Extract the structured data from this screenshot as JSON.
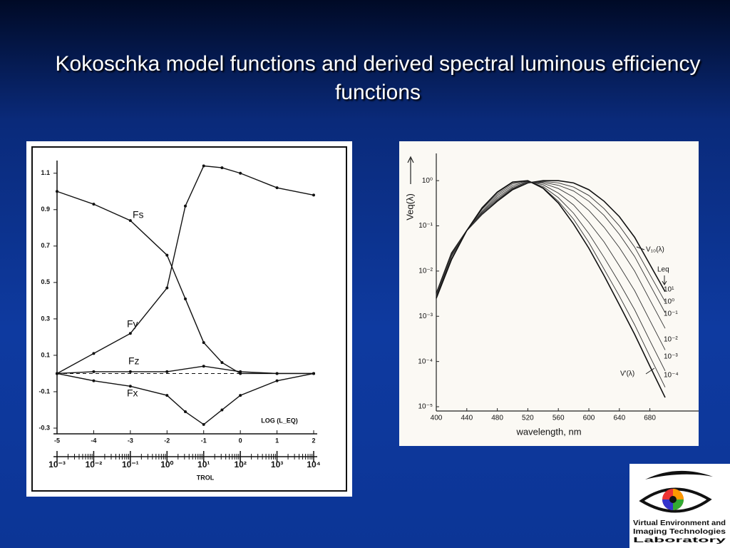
{
  "title": "Kokoschka model functions and derived spectral luminous efficiency functions",
  "chart_data": [
    {
      "type": "line",
      "xlim": [
        -5,
        2
      ],
      "xticks": [
        -5,
        -4,
        -3,
        -2,
        -1,
        0,
        1,
        2
      ],
      "ylim": [
        -0.3,
        1.15
      ],
      "yticks": [
        1.1,
        0.9,
        0.7,
        0.5,
        0.3,
        0.1,
        -0.1,
        -0.3
      ],
      "x2lim": [
        0.001,
        10000
      ],
      "log_x2": true,
      "x2ticks": [
        {
          "value": 0.001,
          "label": "10⁻³"
        },
        {
          "value": 0.01,
          "label": "10⁻²"
        },
        {
          "value": 0.1,
          "label": "10⁻¹"
        },
        {
          "value": 1,
          "label": "10⁰"
        },
        {
          "value": 10,
          "label": "10¹"
        },
        {
          "value": 100,
          "label": "10²"
        },
        {
          "value": 1000,
          "label": "10³"
        },
        {
          "value": 10000,
          "label": "10⁴"
        }
      ],
      "x2label": "TROL",
      "annotations": [
        "LOG (L_EQ)"
      ],
      "series": [
        {
          "name": "Fs",
          "color": "#111111",
          "x": [
            -5,
            -4,
            -3,
            -2,
            -1.5,
            -1,
            -0.5,
            0,
            1,
            2
          ],
          "values": [
            1.0,
            0.93,
            0.84,
            0.65,
            0.41,
            0.17,
            0.06,
            0.0,
            0.0,
            0.0
          ]
        },
        {
          "name": "Fy",
          "color": "#111111",
          "x": [
            -5,
            -4,
            -3,
            -2,
            -1.5,
            -1,
            -0.5,
            0,
            1,
            2
          ],
          "values": [
            0,
            0.11,
            0.22,
            0.47,
            0.92,
            1.14,
            1.13,
            1.1,
            1.02,
            0.98
          ]
        },
        {
          "name": "Fz",
          "color": "#111111",
          "x": [
            -5,
            -4,
            -3,
            -2,
            -1,
            0,
            1,
            2
          ],
          "values": [
            0,
            0.01,
            0.01,
            0.01,
            0.04,
            0.01,
            0.0,
            0
          ]
        },
        {
          "name": "Fx",
          "color": "#111111",
          "x": [
            -5,
            -4,
            -3,
            -2,
            -1.5,
            -1,
            -0.5,
            0,
            1,
            2
          ],
          "values": [
            0,
            -0.04,
            -0.07,
            -0.12,
            -0.21,
            -0.28,
            -0.2,
            -0.12,
            -0.04,
            0
          ]
        }
      ]
    },
    {
      "type": "line",
      "log_y": true,
      "xlabel": "wavelength, nm",
      "ylabel": "Veq(λ)",
      "annotations": [
        "Leq"
      ],
      "xlim": [
        400,
        700
      ],
      "xticks": [
        400,
        440,
        480,
        520,
        560,
        600,
        640,
        680
      ],
      "ylim": [
        1e-05,
        4
      ],
      "yticks": [
        {
          "value": 1,
          "label": "10⁰"
        },
        {
          "value": 0.1,
          "label": "10⁻¹"
        },
        {
          "value": 0.01,
          "label": "10⁻²"
        },
        {
          "value": 0.001,
          "label": "10⁻³"
        },
        {
          "value": 0.0001,
          "label": "10⁻⁴"
        },
        {
          "value": 1e-05,
          "label": "10⁻⁵"
        }
      ],
      "x": [
        400,
        420,
        440,
        460,
        480,
        500,
        520,
        540,
        560,
        580,
        600,
        620,
        640,
        660,
        680,
        700
      ],
      "series": [
        {
          "name": "V₁₀(λ)",
          "color": "#111111",
          "values": [
            0.0032,
            0.025,
            0.079,
            0.18,
            0.35,
            0.63,
            0.89,
            1,
            1,
            0.89,
            0.63,
            0.35,
            0.16,
            0.056,
            0.014,
            0.0035
          ]
        },
        {
          "name": "10¹",
          "color": "#333333",
          "values": [
            0.0031,
            0.024,
            0.079,
            0.18,
            0.37,
            0.66,
            0.9,
            0.96,
            0.89,
            0.72,
            0.47,
            0.24,
            0.1,
            0.034,
            0.0084,
            0.0021
          ]
        },
        {
          "name": "10⁰",
          "color": "#333333",
          "values": [
            0.003,
            0.023,
            0.079,
            0.19,
            0.39,
            0.68,
            0.91,
            0.92,
            0.79,
            0.59,
            0.35,
            0.17,
            0.065,
            0.021,
            0.005,
            0.0012
          ]
        },
        {
          "name": "10⁻¹",
          "color": "#333333",
          "values": [
            0.0029,
            0.022,
            0.079,
            0.2,
            0.42,
            0.72,
            0.93,
            0.87,
            0.67,
            0.43,
            0.22,
            0.093,
            0.033,
            0.01,
            0.0023,
            0.00054
          ]
        },
        {
          "name": "10⁻²",
          "color": "#333333",
          "values": [
            0.0028,
            0.021,
            0.079,
            0.21,
            0.46,
            0.78,
            0.95,
            0.81,
            0.53,
            0.29,
            0.12,
            0.044,
            0.013,
            0.0037,
            0.00081,
            0.00018
          ]
        },
        {
          "name": "10⁻³",
          "color": "#333333",
          "values": [
            0.0027,
            0.019,
            0.079,
            0.23,
            0.5,
            0.85,
            0.97,
            0.74,
            0.42,
            0.19,
            0.067,
            0.02,
            0.0055,
            0.0014,
            0.00029,
            6.2e-05
          ]
        },
        {
          "name": "10⁻⁴",
          "color": "#333333",
          "values": [
            0.0026,
            0.018,
            0.079,
            0.24,
            0.54,
            0.9,
            0.99,
            0.7,
            0.35,
            0.14,
            0.043,
            0.011,
            0.0028,
            0.00065,
            0.00013,
            2.7e-05
          ]
        },
        {
          "name": "V'(λ)",
          "color": "#111111",
          "values": [
            0.0025,
            0.018,
            0.079,
            0.25,
            0.56,
            0.93,
            1,
            0.68,
            0.32,
            0.11,
            0.032,
            0.0079,
            0.0018,
            0.0004,
            7.9e-05,
            1.6e-05
          ]
        }
      ]
    }
  ],
  "logo": {
    "lines": [
      "Virtual Environment and",
      "Imaging Technologies",
      "Laboratory"
    ]
  }
}
